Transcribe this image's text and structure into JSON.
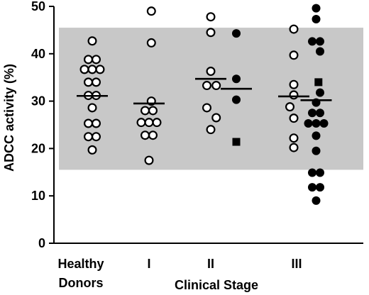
{
  "chart_data": {
    "type": "scatter",
    "title": "",
    "xlabel": "Clinical Stage",
    "ylabel": "ADCC activity (%)",
    "ylim": [
      0,
      50
    ],
    "yticks": [
      0,
      10,
      20,
      30,
      40,
      50
    ],
    "shaded_band": [
      15.5,
      45.5
    ],
    "colors": {
      "band": "#c8c8c8",
      "ink": "#000000",
      "open_fill": "#ffffff"
    },
    "groups": [
      {
        "label_lines": [
          "Healthy",
          "Donors"
        ],
        "group_label": "Healthy Donors"
      },
      {
        "label_lines": [
          "I"
        ],
        "group_label": "I"
      },
      {
        "label_lines": [
          "II"
        ],
        "group_label": "II"
      },
      {
        "label_lines": [
          "III"
        ],
        "group_label": "III"
      }
    ],
    "series": [
      {
        "group": "Healthy Donors",
        "marker": "open-circle",
        "mean": 31.1,
        "points": [
          {
            "dx": 0,
            "y": 42.7
          },
          {
            "dx": -0.5,
            "y": 38.8
          },
          {
            "dx": 0.5,
            "y": 38.8
          },
          {
            "dx": -1,
            "y": 36.7
          },
          {
            "dx": 0,
            "y": 36.7
          },
          {
            "dx": 1,
            "y": 36.7
          },
          {
            "dx": -0.5,
            "y": 34.0
          },
          {
            "dx": 0.5,
            "y": 34.0
          },
          {
            "dx": -0.5,
            "y": 31.2
          },
          {
            "dx": 0.5,
            "y": 31.2
          },
          {
            "dx": 0,
            "y": 28.6
          },
          {
            "dx": -0.5,
            "y": 25.3
          },
          {
            "dx": 0.5,
            "y": 25.3
          },
          {
            "dx": -0.5,
            "y": 22.5
          },
          {
            "dx": 0.5,
            "y": 22.5
          },
          {
            "dx": 0,
            "y": 19.7
          }
        ]
      },
      {
        "group": "I",
        "marker": "open-circle",
        "mean": 29.5,
        "points": [
          {
            "dx": 0.3,
            "y": 49.0
          },
          {
            "dx": 0.3,
            "y": 42.3
          },
          {
            "dx": 0.3,
            "y": 30.0
          },
          {
            "dx": -0.5,
            "y": 28.0
          },
          {
            "dx": 0.5,
            "y": 28.0
          },
          {
            "dx": -1,
            "y": 25.5
          },
          {
            "dx": 0,
            "y": 25.5
          },
          {
            "dx": 1,
            "y": 25.5
          },
          {
            "dx": -0.5,
            "y": 22.8
          },
          {
            "dx": 0.5,
            "y": 22.8
          },
          {
            "dx": 0,
            "y": 17.5
          }
        ]
      },
      {
        "group": "II",
        "marker": "open-circle",
        "mean": 34.7,
        "points": [
          {
            "dx": 0,
            "y": 47.8
          },
          {
            "dx": 0,
            "y": 44.5
          },
          {
            "dx": 0,
            "y": 36.3
          },
          {
            "dx": -0.5,
            "y": 33.3
          },
          {
            "dx": 0.7,
            "y": 33.3
          },
          {
            "dx": -0.5,
            "y": 28.6
          },
          {
            "dx": 0.7,
            "y": 26.5
          },
          {
            "dx": 0,
            "y": 24.0
          }
        ]
      },
      {
        "group": "II",
        "marker": "filled-circle",
        "offset": 1.2,
        "mean": 32.6,
        "points": [
          {
            "dx": 0,
            "y": 44.3
          },
          {
            "dx": 0,
            "y": 34.7
          },
          {
            "dx": 0,
            "y": 30.3
          }
        ]
      },
      {
        "group": "II",
        "marker": "filled-square",
        "offset": 1.2,
        "points": [
          {
            "dx": 0,
            "y": 21.4
          }
        ]
      },
      {
        "group": "III",
        "marker": "open-circle",
        "mean": 31.0,
        "points": [
          {
            "dx": 0,
            "y": 45.2
          },
          {
            "dx": 0,
            "y": 39.7
          },
          {
            "dx": 0,
            "y": 33.5
          },
          {
            "dx": 0,
            "y": 31.3
          },
          {
            "dx": -0.5,
            "y": 28.8
          },
          {
            "dx": 0,
            "y": 26.4
          },
          {
            "dx": 0,
            "y": 22.2
          },
          {
            "dx": 0,
            "y": 20.2
          }
        ]
      },
      {
        "group": "III",
        "marker": "filled-circle",
        "offset": 1.05,
        "mean": 30.2,
        "points": [
          {
            "dx": 0,
            "y": 49.6
          },
          {
            "dx": 0,
            "y": 47.3
          },
          {
            "dx": -0.5,
            "y": 42.6
          },
          {
            "dx": 0.5,
            "y": 42.6
          },
          {
            "dx": 0.5,
            "y": 40.5
          },
          {
            "dx": 0.5,
            "y": 31.8
          },
          {
            "dx": 0,
            "y": 29.7
          },
          {
            "dx": -0.5,
            "y": 27.5
          },
          {
            "dx": 0.5,
            "y": 27.5
          },
          {
            "dx": -1,
            "y": 25.3
          },
          {
            "dx": 0,
            "y": 25.3
          },
          {
            "dx": 1,
            "y": 25.3
          },
          {
            "dx": 0,
            "y": 22.7
          },
          {
            "dx": 0,
            "y": 19.5
          },
          {
            "dx": -0.5,
            "y": 14.9
          },
          {
            "dx": 0.5,
            "y": 14.9
          },
          {
            "dx": -0.5,
            "y": 11.8
          },
          {
            "dx": 0.5,
            "y": 11.8
          },
          {
            "dx": 0,
            "y": 9.0
          }
        ]
      },
      {
        "group": "III",
        "marker": "filled-square",
        "offset": 1.05,
        "points": [
          {
            "dx": 0.3,
            "y": 34.0
          }
        ]
      }
    ]
  }
}
